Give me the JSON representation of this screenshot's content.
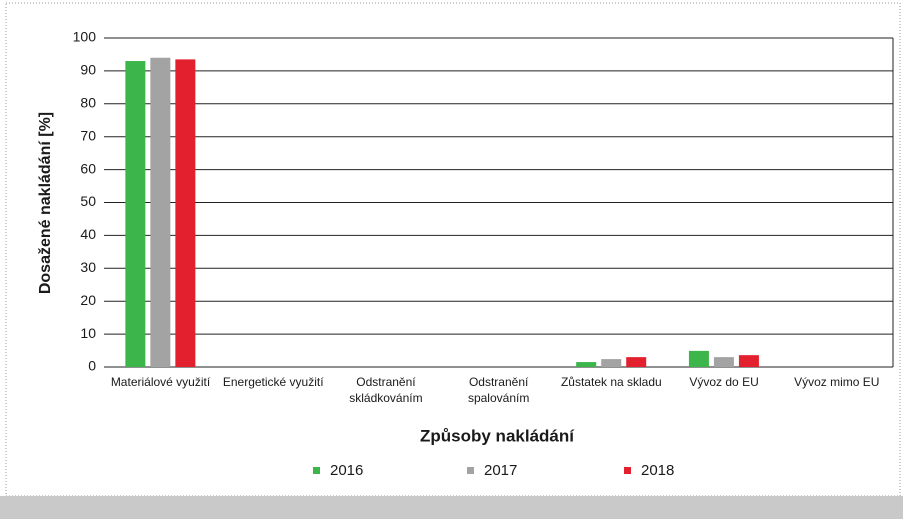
{
  "chart_data": {
    "type": "bar",
    "xlabel": "Způsoby nakládání",
    "ylabel": "Dosažené nakládání [%]",
    "categories": [
      "Materiálové využití",
      "Energetické využití",
      "Odstranění\nskládkováním",
      "Odstranění\nspalováním",
      "Zůstatek na skladu",
      "Vývoz do EU",
      "Vývoz mimo EU"
    ],
    "series": [
      {
        "name": "2016",
        "color": "#3cb54a",
        "values": [
          93,
          0,
          0,
          0,
          1.5,
          4.9,
          0
        ]
      },
      {
        "name": "2017",
        "color": "#a3a3a3",
        "values": [
          94,
          0,
          0,
          0,
          2.4,
          3,
          0
        ]
      },
      {
        "name": "2018",
        "color": "#e3202d",
        "values": [
          93.5,
          0,
          0,
          0,
          3,
          3.6,
          0
        ]
      }
    ],
    "ylim": [
      0,
      100
    ],
    "yticks": [
      0,
      10,
      20,
      30,
      40,
      50,
      60,
      70,
      80,
      90,
      100
    ],
    "grid": true,
    "legend": "bottom"
  }
}
